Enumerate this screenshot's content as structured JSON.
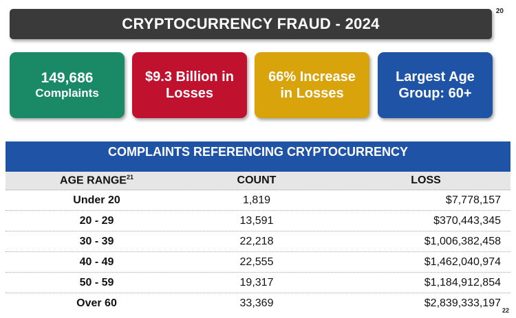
{
  "page_numbers": {
    "top": "20",
    "bottom": "22"
  },
  "title": "CRYPTOCURRENCY FRAUD - 2024",
  "cards": [
    {
      "line1": "149,686",
      "line2": "Complaints",
      "color": "#1a8a66"
    },
    {
      "line1": "$9.3 Billion in",
      "line2": "Losses",
      "color": "#c0122e"
    },
    {
      "line1": "66% Increase",
      "line2": "in Losses",
      "color": "#d9a30c"
    },
    {
      "line1": "Largest Age",
      "line2": "Group: 60+",
      "color": "#1e53a6"
    }
  ],
  "table": {
    "title": "COMPLAINTS REFERENCING CRYPTOCURRENCY",
    "headers": {
      "age_range": "AGE RANGE",
      "age_range_sup": "21",
      "count": "COUNT",
      "loss": "LOSS"
    },
    "rows": [
      {
        "age": "Under 20",
        "count": "1,819",
        "loss": "$7,778,157"
      },
      {
        "age": "20 - 29",
        "count": "13,591",
        "loss": "$370,443,345"
      },
      {
        "age": "30 - 39",
        "count": "22,218",
        "loss": "$1,006,382,458"
      },
      {
        "age": "40 - 49",
        "count": "22,555",
        "loss": "$1,462,040,974"
      },
      {
        "age": "50 - 59",
        "count": "19,317",
        "loss": "$1,184,912,854"
      },
      {
        "age": "Over 60",
        "count": "33,369",
        "loss": "$2,839,333,197"
      }
    ]
  }
}
